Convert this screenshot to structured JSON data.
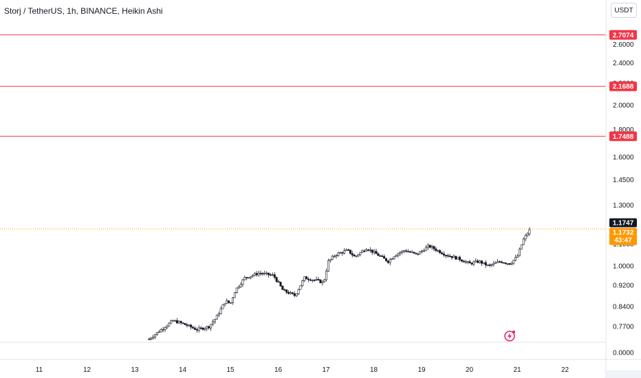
{
  "header": {
    "title": "Storj / TetherUS, 1h, BINANCE, Heikin Ashi",
    "currency": "USDT"
  },
  "colors": {
    "level_line": "#f23645",
    "candle": "#131722",
    "current_price": "#ff9800",
    "last_price_bg": "#131722"
  },
  "icons": {
    "logo": "lightning-icon"
  },
  "chart_data": {
    "type": "candlestick",
    "style": "Heikin Ashi",
    "scale": "logarithmic",
    "grid": false,
    "x_ticks": [
      "11",
      "12",
      "13",
      "14",
      "15",
      "16",
      "17",
      "18",
      "19",
      "20",
      "21",
      "22"
    ],
    "y_ticks": [
      "2.6000",
      "2.4000",
      "2.2000",
      "2.0000",
      "1.8000",
      "1.6000",
      "1.4500",
      "1.3000",
      "1.1000",
      "1.0000",
      "0.9200",
      "0.8400",
      "0.7700",
      "0.0000"
    ],
    "horizontal_levels": [
      {
        "value": 2.7074,
        "label": "2.7074"
      },
      {
        "value": 2.1688,
        "label": "2.1688"
      },
      {
        "value": 1.7488,
        "label": "1.7488"
      }
    ],
    "last_price": {
      "value": 1.1747,
      "label": "1.1747"
    },
    "current_price": {
      "value": 1.1732,
      "label": "1.1732",
      "countdown": "43:47"
    },
    "price_path": [
      {
        "day": 13.3,
        "price": 0.73
      },
      {
        "day": 13.55,
        "price": 0.76
      },
      {
        "day": 13.8,
        "price": 0.79
      },
      {
        "day": 14.0,
        "price": 0.78
      },
      {
        "day": 14.3,
        "price": 0.76
      },
      {
        "day": 14.55,
        "price": 0.77
      },
      {
        "day": 14.7,
        "price": 0.8
      },
      {
        "day": 14.9,
        "price": 0.86
      },
      {
        "day": 15.0,
        "price": 0.85
      },
      {
        "day": 15.1,
        "price": 0.9
      },
      {
        "day": 15.3,
        "price": 0.95
      },
      {
        "day": 15.6,
        "price": 0.97
      },
      {
        "day": 15.9,
        "price": 0.96
      },
      {
        "day": 16.1,
        "price": 0.9
      },
      {
        "day": 16.35,
        "price": 0.88
      },
      {
        "day": 16.55,
        "price": 0.95
      },
      {
        "day": 16.8,
        "price": 0.94
      },
      {
        "day": 16.95,
        "price": 0.93
      },
      {
        "day": 17.05,
        "price": 1.02
      },
      {
        "day": 17.2,
        "price": 1.05
      },
      {
        "day": 17.45,
        "price": 1.07
      },
      {
        "day": 17.6,
        "price": 1.04
      },
      {
        "day": 17.85,
        "price": 1.08
      },
      {
        "day": 18.0,
        "price": 1.06
      },
      {
        "day": 18.3,
        "price": 1.02
      },
      {
        "day": 18.45,
        "price": 1.05
      },
      {
        "day": 18.65,
        "price": 1.07
      },
      {
        "day": 18.9,
        "price": 1.05
      },
      {
        "day": 19.15,
        "price": 1.09
      },
      {
        "day": 19.5,
        "price": 1.05
      },
      {
        "day": 19.8,
        "price": 1.03
      },
      {
        "day": 20.0,
        "price": 1.01
      },
      {
        "day": 20.2,
        "price": 1.02
      },
      {
        "day": 20.4,
        "price": 1.0
      },
      {
        "day": 20.65,
        "price": 1.02
      },
      {
        "day": 20.85,
        "price": 1.01
      },
      {
        "day": 21.0,
        "price": 1.04
      },
      {
        "day": 21.13,
        "price": 1.12
      },
      {
        "day": 21.27,
        "price": 1.17
      }
    ]
  }
}
